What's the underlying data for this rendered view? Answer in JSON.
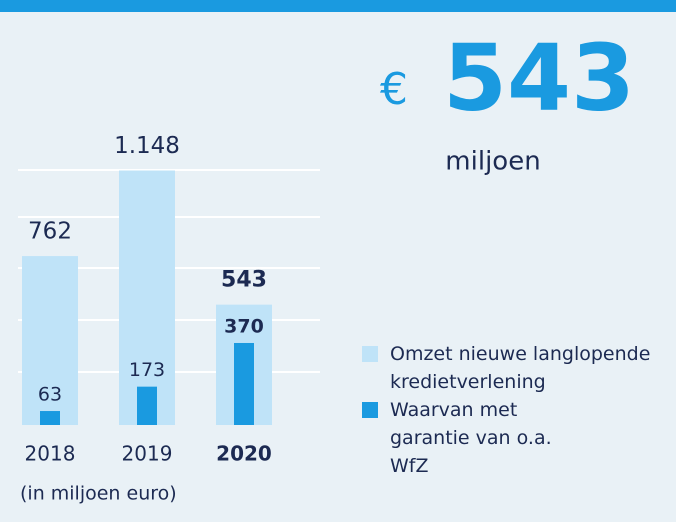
{
  "chart_data": {
    "type": "bar",
    "headline": {
      "currency": "€",
      "value": "543",
      "unit": "miljoen"
    },
    "categories": [
      "2018",
      "2019",
      "2020"
    ],
    "series": [
      {
        "name": "Omzet nieuwe langlopende kredietverlening",
        "color": "#bfe3f8",
        "values": [
          762,
          1148,
          543
        ],
        "value_labels": [
          "762",
          "1.148",
          "543"
        ]
      },
      {
        "name": "Waarvan met garantie van o.a. WfZ",
        "color": "#1a9ae0",
        "values": [
          63,
          173,
          370
        ]
      }
    ],
    "ylim": [
      0,
      1200
    ],
    "note": "(in miljoen euro)"
  }
}
